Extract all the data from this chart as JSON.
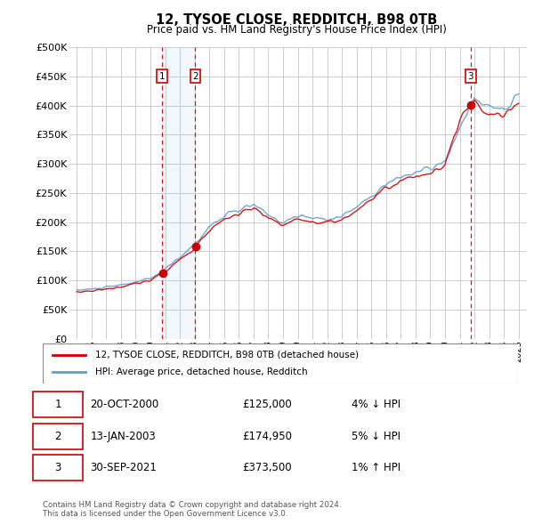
{
  "title": "12, TYSOE CLOSE, REDDITCH, B98 0TB",
  "subtitle": "Price paid vs. HM Land Registry's House Price Index (HPI)",
  "ylabel_ticks": [
    "£0",
    "£50K",
    "£100K",
    "£150K",
    "£200K",
    "£250K",
    "£300K",
    "£350K",
    "£400K",
    "£450K",
    "£500K"
  ],
  "ytick_values": [
    0,
    50000,
    100000,
    150000,
    200000,
    250000,
    300000,
    350000,
    400000,
    450000,
    500000
  ],
  "xmin": 1994.5,
  "xmax": 2025.5,
  "ymin": 0,
  "ymax": 500000,
  "line_color_red": "#cc0000",
  "line_color_blue": "#6699cc",
  "background_color": "#ffffff",
  "grid_color": "#cccccc",
  "transactions": [
    {
      "num": 1,
      "date": "20-OCT-2000",
      "price": 125000,
      "year": 2000.8,
      "hpi_diff": "4% ↓ HPI"
    },
    {
      "num": 2,
      "date": "13-JAN-2003",
      "price": 174950,
      "year": 2003.05,
      "hpi_diff": "5% ↓ HPI"
    },
    {
      "num": 3,
      "date": "30-SEP-2021",
      "price": 373500,
      "year": 2021.75,
      "hpi_diff": "1% ↑ HPI"
    }
  ],
  "legend_entries": [
    "12, TYSOE CLOSE, REDDITCH, B98 0TB (detached house)",
    "HPI: Average price, detached house, Redditch"
  ],
  "footer_text": "Contains HM Land Registry data © Crown copyright and database right 2024.\nThis data is licensed under the Open Government Licence v3.0.",
  "annual_years": [
    1995,
    1996,
    1997,
    1998,
    1999,
    2000,
    2001,
    2002,
    2003,
    2004,
    2005,
    2006,
    2007,
    2008,
    2009,
    2010,
    2011,
    2012,
    2013,
    2014,
    2015,
    2016,
    2017,
    2018,
    2019,
    2020,
    2021,
    2022,
    2023,
    2024,
    2025
  ],
  "hpi_annual": [
    83000,
    85000,
    88000,
    92000,
    97000,
    103000,
    119000,
    140000,
    162000,
    192000,
    210000,
    220000,
    230000,
    212000,
    200000,
    210000,
    207000,
    205000,
    210000,
    226000,
    246000,
    264000,
    278000,
    285000,
    292000,
    302000,
    358000,
    415000,
    395000,
    392000,
    418000
  ],
  "red_annual": [
    80000,
    82000,
    85000,
    89000,
    94000,
    100000,
    115000,
    135000,
    157000,
    186000,
    204000,
    214000,
    224000,
    206000,
    194000,
    204000,
    201000,
    199000,
    204000,
    220000,
    240000,
    257000,
    272000,
    278000,
    285000,
    294000,
    373500,
    405000,
    385000,
    382000,
    408000
  ]
}
